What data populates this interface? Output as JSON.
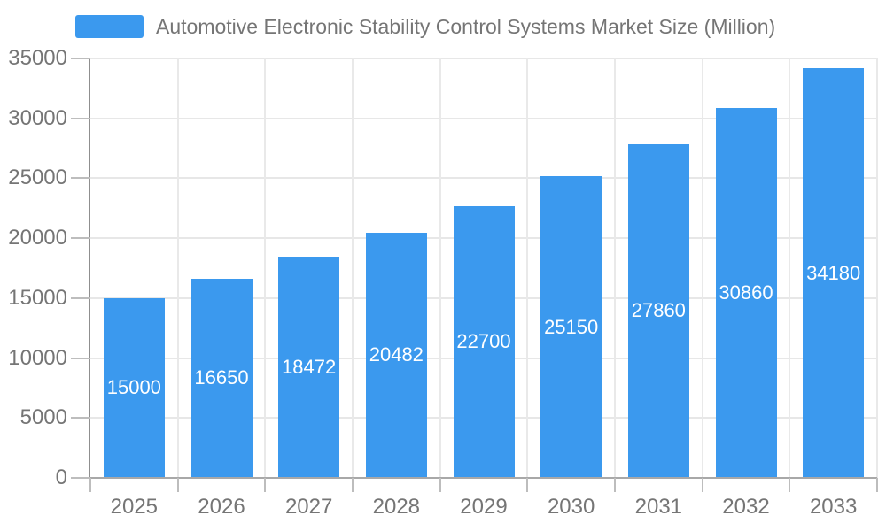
{
  "legend": {
    "label": "Automotive Electronic Stability Control Systems Market Size (Million)"
  },
  "chart_data": {
    "type": "bar",
    "title": "Automotive Electronic Stability Control Systems Market Size (Million)",
    "categories": [
      "2025",
      "2026",
      "2027",
      "2028",
      "2029",
      "2030",
      "2031",
      "2032",
      "2033"
    ],
    "values": [
      15000,
      16650,
      18472,
      20482,
      22700,
      25150,
      27860,
      30860,
      34180
    ],
    "xlabel": "",
    "ylabel": "",
    "ylim": [
      0,
      35000
    ],
    "yticks": [
      0,
      5000,
      10000,
      15000,
      20000,
      25000,
      30000,
      35000
    ],
    "grid": true,
    "legend_position": "top-left",
    "bar_color": "#3b99ee",
    "value_label_color": "#ffffff",
    "axis_text_color": "#757575",
    "gridline_color": "#e7e7e7"
  }
}
